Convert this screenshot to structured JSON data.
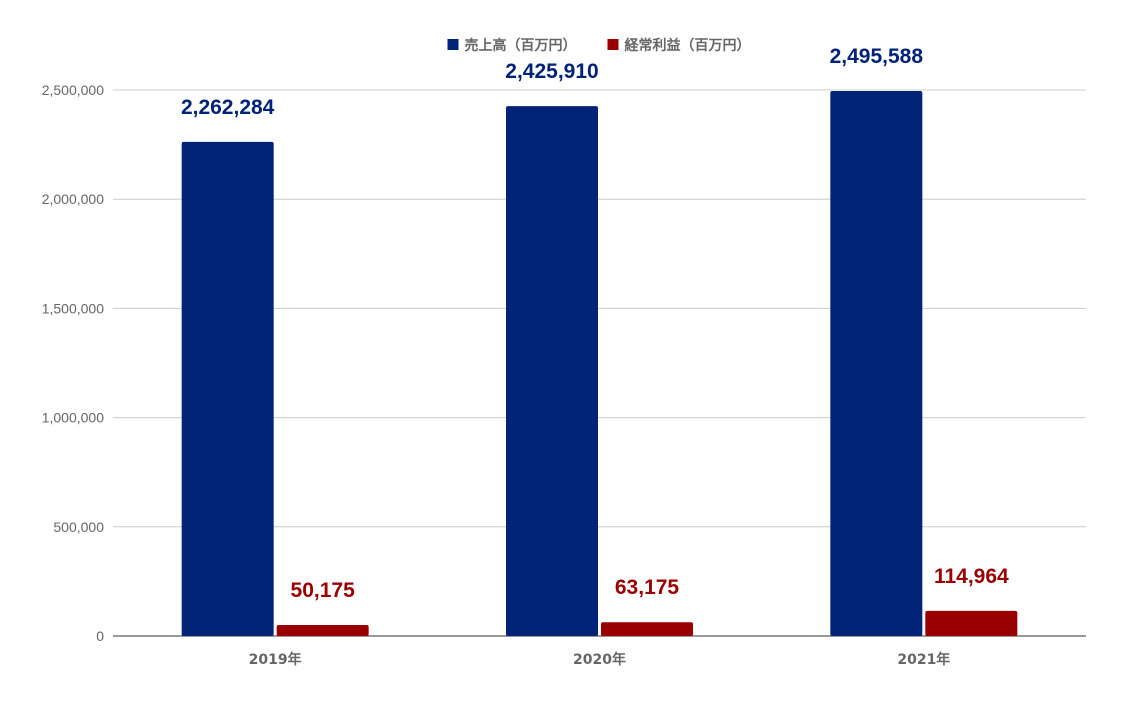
{
  "chart_data": {
    "type": "bar",
    "categories": [
      "2019年",
      "2020年",
      "2021年"
    ],
    "series": [
      {
        "name": "売上高（百万円）",
        "color": "#002277",
        "values": [
          2262284,
          2425910,
          2495588
        ],
        "labels": [
          "2,262,284",
          "2,425,910",
          "2,495,588"
        ]
      },
      {
        "name": "経常利益（百万円）",
        "color": "#990000",
        "values": [
          50175,
          63175,
          114964
        ],
        "labels": [
          "50,175",
          "63,175",
          "114,964"
        ]
      }
    ],
    "ylim": [
      0,
      2500000
    ],
    "yticks": [
      0,
      500000,
      1000000,
      1500000,
      2000000,
      2500000
    ],
    "ytick_labels": [
      "0",
      "500,000",
      "1,000,000",
      "1,500,000",
      "2,000,000",
      "2,500,000"
    ],
    "grid": true,
    "legend_position": "top-center",
    "title": "",
    "xlabel": "",
    "ylabel": ""
  }
}
